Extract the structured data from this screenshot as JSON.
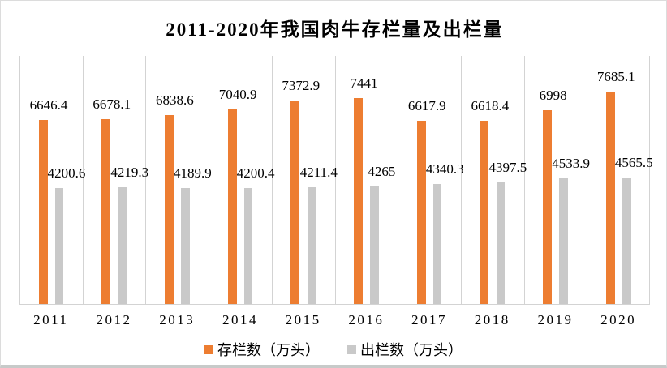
{
  "chart_data": {
    "type": "bar",
    "title": "2011-2020年我国肉牛存栏量及出栏量",
    "categories": [
      "2011",
      "2012",
      "2013",
      "2014",
      "2015",
      "2016",
      "2017",
      "2018",
      "2019",
      "2020"
    ],
    "series": [
      {
        "name": "存栏数（万头）",
        "color": "#ED7D31",
        "values": [
          6646.4,
          6678.1,
          6838.6,
          7040.9,
          7372.9,
          7441,
          6617.9,
          6618.4,
          6998,
          7685.1
        ]
      },
      {
        "name": "出栏数（万头）",
        "color": "#C9C9C9",
        "values": [
          4200.6,
          4219.3,
          4189.9,
          4200.4,
          4211.4,
          4265,
          4340.3,
          4397.5,
          4533.9,
          4565.5
        ]
      }
    ],
    "ylim": [
      0,
      9000
    ],
    "xlabel": "",
    "ylabel": "",
    "grid": "vertical category boundaries only",
    "data_labels": "above each bar",
    "legend_position": "bottom-center",
    "colors": {
      "gridline": "#D3D3D3",
      "axis_line": "#D3D3D3",
      "frame_border": "#DCDCDC",
      "frame_bottom_border": "#C7CAC9",
      "text": "#000000",
      "background": "#FFFFFF"
    }
  }
}
